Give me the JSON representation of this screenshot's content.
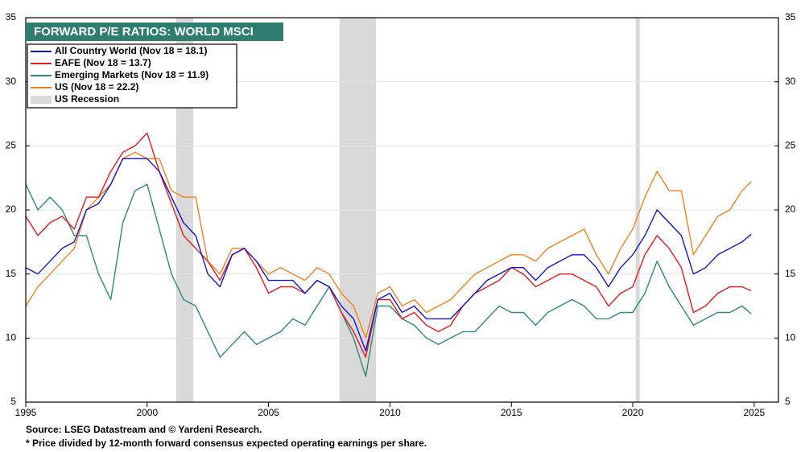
{
  "chart_data": {
    "type": "line",
    "title": "FORWARD P/E RATIOS: WORLD MSCI",
    "x": [
      1995.0,
      1995.5,
      1996.0,
      1996.5,
      1997.0,
      1997.5,
      1998.0,
      1998.5,
      1999.0,
      1999.5,
      2000.0,
      2000.5,
      2001.0,
      2001.5,
      2002.0,
      2002.5,
      2003.0,
      2003.5,
      2004.0,
      2004.5,
      2005.0,
      2005.5,
      2006.0,
      2006.5,
      2007.0,
      2007.5,
      2008.0,
      2008.5,
      2009.0,
      2009.5,
      2010.0,
      2010.5,
      2011.0,
      2011.5,
      2012.0,
      2012.5,
      2013.0,
      2013.5,
      2014.0,
      2014.5,
      2015.0,
      2015.5,
      2016.0,
      2016.5,
      2017.0,
      2017.5,
      2018.0,
      2018.5,
      2019.0,
      2019.5,
      2020.0,
      2020.5,
      2021.0,
      2021.5,
      2022.0,
      2022.5,
      2023.0,
      2023.5,
      2024.0,
      2024.5,
      2024.88
    ],
    "series": [
      {
        "name": "All Country World (Nov 18 = 18.1)",
        "color": "#1515c8",
        "values": [
          15.5,
          15,
          16,
          17,
          17.5,
          20,
          20.5,
          22,
          24,
          24,
          24,
          23,
          21,
          19,
          18,
          15,
          14,
          16.5,
          17,
          16,
          14.5,
          14.5,
          14.5,
          13.5,
          14.5,
          14,
          12.5,
          11.5,
          9,
          13,
          13.5,
          12,
          12.5,
          11.5,
          11.5,
          11.5,
          12.5,
          13.5,
          14.5,
          15,
          15.5,
          15.5,
          14.5,
          15.5,
          16,
          16.5,
          16.5,
          15.5,
          14,
          15.5,
          16.5,
          18,
          20,
          19,
          18,
          15,
          15.5,
          16.5,
          17,
          17.5,
          18.1
        ]
      },
      {
        "name": "EAFE (Nov 18 = 13.7)",
        "color": "#e21a1a",
        "values": [
          19.5,
          18,
          19,
          19.5,
          18.5,
          21,
          21,
          23,
          24.5,
          25,
          26,
          23,
          20.5,
          18,
          17,
          16,
          14.5,
          16.5,
          17,
          15.5,
          13.5,
          14,
          14,
          13.5,
          14.5,
          14,
          12,
          10.5,
          8.5,
          13,
          13,
          11.5,
          12,
          11,
          10.5,
          11,
          12.5,
          13.5,
          14,
          14.5,
          15.5,
          15,
          14,
          14.5,
          15,
          15,
          14.5,
          14,
          12.5,
          13.5,
          14,
          16.5,
          18,
          17,
          15.5,
          12,
          12.5,
          13.5,
          14,
          14,
          13.7
        ]
      },
      {
        "name": "Emerging Markets (Nov 18 = 11.9)",
        "color": "#2b8a7a",
        "values": [
          22,
          20,
          21,
          20,
          18,
          18,
          15,
          13,
          19,
          21.5,
          22,
          18.5,
          15,
          13,
          12.5,
          10.5,
          8.5,
          9.5,
          10.5,
          9.5,
          10,
          10.5,
          11.5,
          11,
          12.5,
          14,
          12,
          10,
          7,
          12.5,
          12.5,
          11.5,
          11,
          10,
          9.5,
          10,
          10.5,
          10.5,
          11.5,
          12.5,
          12,
          12,
          11,
          12,
          12.5,
          13,
          12.5,
          11.5,
          11.5,
          12,
          12,
          13.5,
          16,
          14,
          12.5,
          11,
          11.5,
          12,
          12,
          12.5,
          11.9
        ]
      },
      {
        "name": "US (Nov 18 = 22.2)",
        "color": "#f0821e",
        "values": [
          12.5,
          14,
          15,
          16,
          17,
          20,
          21,
          22,
          24,
          24.5,
          24,
          24,
          21.5,
          21,
          21,
          16,
          15,
          17,
          17,
          16,
          15,
          15.5,
          15,
          14.5,
          15.5,
          15,
          13.5,
          12.5,
          10,
          13.5,
          14,
          12.5,
          13,
          12,
          12.5,
          13,
          14,
          15,
          15.5,
          16,
          16.5,
          16.5,
          16,
          17,
          17.5,
          18,
          18.5,
          16.5,
          15,
          17,
          18.5,
          21,
          23,
          21.5,
          21.5,
          16.5,
          18,
          19.5,
          20,
          21.5,
          22.2
        ]
      }
    ],
    "recession_label": "US Recession",
    "recession_color": "#d9d9d9",
    "recessions": [
      [
        2001.2,
        2001.9
      ],
      [
        2007.92,
        2009.42
      ],
      [
        2020.12,
        2020.29
      ]
    ],
    "xlim": [
      1995,
      2026
    ],
    "xticks": [
      1995,
      2000,
      2005,
      2010,
      2015,
      2020,
      2025
    ],
    "ylim": [
      5,
      35
    ],
    "yticks": [
      5,
      10,
      15,
      20,
      25,
      30,
      35
    ],
    "y2lim": [
      5,
      35
    ],
    "y2ticks": [
      5,
      10,
      15,
      20,
      25,
      30,
      35
    ],
    "grid": true,
    "legend": "upper left",
    "source": "Source: LSEG Datastream and © Yardeni Research.",
    "note": "* Price divided by 12-month forward consensus expected operating earnings per share."
  }
}
